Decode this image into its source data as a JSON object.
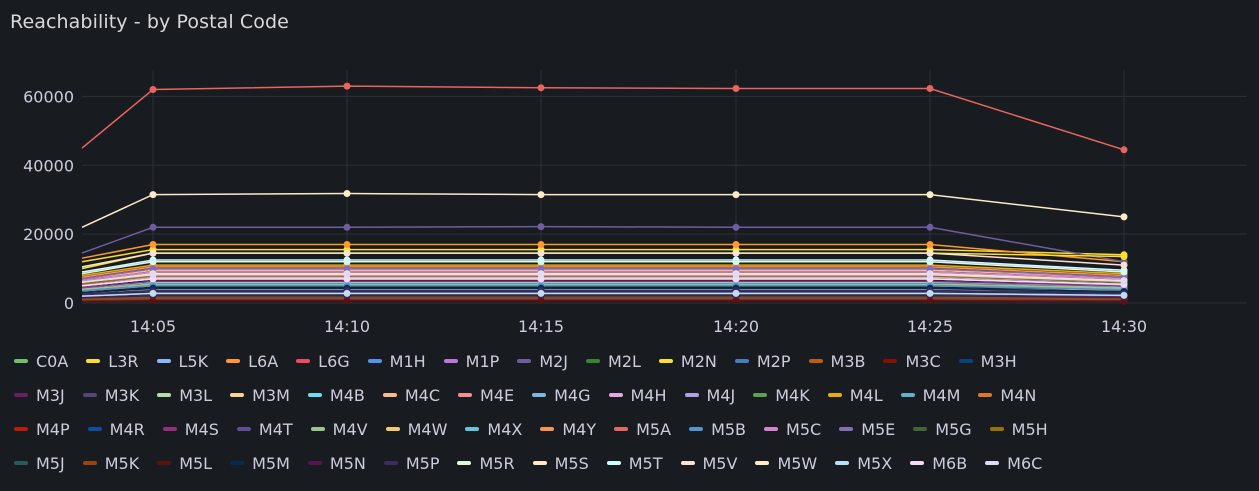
{
  "panel": {
    "title": "Reachability - by Postal Code"
  },
  "chart_data": {
    "type": "line",
    "x": [
      "14:03",
      "14:05",
      "14:10",
      "14:15",
      "14:20",
      "14:25",
      "14:30"
    ],
    "xticks": [
      "14:05",
      "14:10",
      "14:15",
      "14:20",
      "14:25",
      "14:30"
    ],
    "yticks": [
      "0",
      "20000",
      "40000",
      "60000"
    ],
    "ylim": [
      0,
      70000
    ],
    "grid": true,
    "legend_position": "bottom",
    "series": [
      {
        "name": "C0A",
        "color": "#73bf69",
        "values": [
          1500,
          2000,
          2000,
          2000,
          2000,
          2000,
          1500
        ]
      },
      {
        "name": "L3R",
        "color": "#fade2a",
        "values": [
          12000,
          15500,
          15500,
          15500,
          15500,
          15500,
          14000
        ]
      },
      {
        "name": "L5K",
        "color": "#8ab8ff",
        "values": [
          3000,
          4000,
          4000,
          4000,
          4000,
          4000,
          3500
        ]
      },
      {
        "name": "L6A",
        "color": "#ff9830",
        "values": [
          13000,
          17000,
          17000,
          17000,
          17000,
          17000,
          12000
        ]
      },
      {
        "name": "L6G",
        "color": "#f2495c",
        "values": [
          500,
          800,
          800,
          800,
          800,
          800,
          600
        ]
      },
      {
        "name": "M1H",
        "color": "#5794f2",
        "values": [
          2000,
          2800,
          2800,
          2800,
          2800,
          2800,
          2200
        ]
      },
      {
        "name": "M1P",
        "color": "#b877d9",
        "values": [
          9000,
          12000,
          12000,
          12000,
          12000,
          12000,
          9500
        ]
      },
      {
        "name": "M2J",
        "color": "#705da0",
        "values": [
          14500,
          22000,
          22000,
          22200,
          22000,
          22000,
          12000
        ]
      },
      {
        "name": "M2L",
        "color": "#37872d",
        "values": [
          800,
          1200,
          1200,
          1200,
          1200,
          1200,
          900
        ]
      },
      {
        "name": "M2N",
        "color": "#fade2a",
        "values": [
          10000,
          14500,
          14500,
          14500,
          14500,
          14500,
          13500
        ]
      },
      {
        "name": "M2P",
        "color": "#447ebc",
        "values": [
          1000,
          1500,
          1500,
          1500,
          1500,
          1500,
          1200
        ]
      },
      {
        "name": "M3B",
        "color": "#c15c17",
        "values": [
          3500,
          5000,
          5000,
          5000,
          5000,
          5000,
          4000
        ]
      },
      {
        "name": "M3C",
        "color": "#890f02",
        "values": [
          4000,
          5500,
          5500,
          5500,
          5500,
          5500,
          4500
        ]
      },
      {
        "name": "M3H",
        "color": "#0a437c",
        "values": [
          2500,
          3500,
          3500,
          3500,
          3500,
          3500,
          2800
        ]
      },
      {
        "name": "M3J",
        "color": "#6d1f62",
        "values": [
          600,
          900,
          900,
          900,
          900,
          900,
          700
        ]
      },
      {
        "name": "M3K",
        "color": "#584477",
        "values": [
          1500,
          2200,
          2200,
          2200,
          2200,
          2200,
          1800
        ]
      },
      {
        "name": "M3L",
        "color": "#b7dbab",
        "values": [
          3000,
          4200,
          4200,
          4200,
          4200,
          4200,
          3500
        ]
      },
      {
        "name": "M3M",
        "color": "#f4d598",
        "values": [
          5000,
          7000,
          7000,
          7000,
          7000,
          7000,
          5500
        ]
      },
      {
        "name": "M4B",
        "color": "#70dbed",
        "values": [
          4500,
          6000,
          6000,
          6000,
          6000,
          6000,
          5000
        ]
      },
      {
        "name": "M4C",
        "color": "#f9ba8f",
        "values": [
          7000,
          9500,
          9500,
          9500,
          9500,
          9500,
          7500
        ]
      },
      {
        "name": "M4E",
        "color": "#f29191",
        "values": [
          6500,
          9000,
          9000,
          9000,
          9000,
          9000,
          7000
        ]
      },
      {
        "name": "M4G",
        "color": "#82b5d8",
        "values": [
          4000,
          5500,
          5500,
          5500,
          5500,
          5500,
          4500
        ]
      },
      {
        "name": "M4H",
        "color": "#e5a8e2",
        "values": [
          5500,
          7500,
          7500,
          7500,
          7500,
          7500,
          6000
        ]
      },
      {
        "name": "M4J",
        "color": "#aea2e0",
        "values": [
          6000,
          8500,
          8500,
          8500,
          8500,
          8500,
          6500
        ]
      },
      {
        "name": "M4K",
        "color": "#629e51",
        "values": [
          5000,
          7000,
          7000,
          7000,
          7000,
          7000,
          5500
        ]
      },
      {
        "name": "M4L",
        "color": "#e5ac0e",
        "values": [
          8000,
          11000,
          11000,
          11000,
          11000,
          11000,
          8500
        ]
      },
      {
        "name": "M4M",
        "color": "#64b0c8",
        "values": [
          5000,
          7000,
          7000,
          7000,
          7000,
          7000,
          5500
        ]
      },
      {
        "name": "M4N",
        "color": "#e0752d",
        "values": [
          3500,
          5000,
          5000,
          5000,
          5000,
          5000,
          4000
        ]
      },
      {
        "name": "M4P",
        "color": "#bf1b00",
        "values": [
          3000,
          4200,
          4200,
          4200,
          4200,
          4200,
          3300
        ]
      },
      {
        "name": "M4R",
        "color": "#0a50a1",
        "values": [
          2500,
          3500,
          3500,
          3500,
          3500,
          3500,
          2700
        ]
      },
      {
        "name": "M4S",
        "color": "#962d82",
        "values": [
          4500,
          6300,
          6300,
          6300,
          6300,
          6300,
          5000
        ]
      },
      {
        "name": "M4T",
        "color": "#614d93",
        "values": [
          2000,
          2800,
          2800,
          2800,
          2800,
          2800,
          2200
        ]
      },
      {
        "name": "M4V",
        "color": "#9ac48a",
        "values": [
          4000,
          5500,
          5500,
          5500,
          5500,
          5500,
          4300
        ]
      },
      {
        "name": "M4W",
        "color": "#f2c96d",
        "values": [
          6000,
          8500,
          8500,
          8500,
          8500,
          8500,
          6500
        ]
      },
      {
        "name": "M4X",
        "color": "#65c5db",
        "values": [
          5000,
          7000,
          7000,
          7000,
          7000,
          7000,
          5300
        ]
      },
      {
        "name": "M4Y",
        "color": "#f9934e",
        "values": [
          7500,
          10500,
          10500,
          10500,
          10500,
          10500,
          8000
        ]
      },
      {
        "name": "M5A",
        "color": "#ea6460",
        "values": [
          45000,
          62000,
          63000,
          62500,
          62300,
          62300,
          44500
        ]
      },
      {
        "name": "M5B",
        "color": "#5195ce",
        "values": [
          3500,
          5000,
          5000,
          5000,
          5000,
          5000,
          3800
        ]
      },
      {
        "name": "M5C",
        "color": "#d683ce",
        "values": [
          6500,
          9000,
          9000,
          9000,
          9000,
          9000,
          7000
        ]
      },
      {
        "name": "M5E",
        "color": "#806eb7",
        "values": [
          7000,
          10000,
          10000,
          10000,
          10000,
          10000,
          7500
        ]
      },
      {
        "name": "M5G",
        "color": "#3f6833",
        "values": [
          1200,
          1700,
          1700,
          1700,
          1700,
          1700,
          1300
        ]
      },
      {
        "name": "M5H",
        "color": "#967302",
        "values": [
          5500,
          7800,
          7800,
          7800,
          7800,
          7800,
          6000
        ]
      },
      {
        "name": "M5J",
        "color": "#2f575e",
        "values": [
          2000,
          2900,
          2900,
          2900,
          2900,
          2900,
          2200
        ]
      },
      {
        "name": "M5K",
        "color": "#99440a",
        "values": [
          1000,
          1400,
          1400,
          1400,
          1400,
          1400,
          1100
        ]
      },
      {
        "name": "M5L",
        "color": "#58140c",
        "values": [
          400,
          600,
          600,
          600,
          600,
          600,
          450
        ]
      },
      {
        "name": "M5M",
        "color": "#052b51",
        "values": [
          3000,
          4300,
          4300,
          4300,
          4300,
          4300,
          3300
        ]
      },
      {
        "name": "M5N",
        "color": "#511749",
        "values": [
          1500,
          2100,
          2100,
          2100,
          2100,
          2100,
          1600
        ]
      },
      {
        "name": "M5P",
        "color": "#3f2b5b",
        "values": [
          2500,
          3600,
          3600,
          3600,
          3600,
          3600,
          2800
        ]
      },
      {
        "name": "M5R",
        "color": "#e0f9d7",
        "values": [
          8500,
          12000,
          12000,
          12000,
          12000,
          12000,
          9000
        ]
      },
      {
        "name": "M5S",
        "color": "#fceaca",
        "values": [
          22000,
          31500,
          31800,
          31500,
          31500,
          31500,
          25000
        ]
      },
      {
        "name": "M5T",
        "color": "#cffaff",
        "values": [
          9000,
          12500,
          12500,
          12500,
          12500,
          12500,
          9500
        ]
      },
      {
        "name": "M5V",
        "color": "#f9e2d2",
        "values": [
          10500,
          14500,
          14500,
          14500,
          14500,
          14500,
          11000
        ]
      },
      {
        "name": "M5W",
        "color": "#fceaca",
        "values": [
          6000,
          8500,
          8500,
          8500,
          8500,
          8500,
          6500
        ]
      },
      {
        "name": "M5X",
        "color": "#badff4",
        "values": [
          2000,
          2800,
          2800,
          2800,
          2800,
          2800,
          2200
        ]
      },
      {
        "name": "M6B",
        "color": "#f9d9f9",
        "values": [
          5000,
          7000,
          7000,
          7000,
          7000,
          7000,
          5400
        ]
      },
      {
        "name": "M6C",
        "color": "#dedaf7",
        "values": [
          6000,
          8200,
          8200,
          8200,
          8200,
          8200,
          6300
        ]
      }
    ]
  }
}
